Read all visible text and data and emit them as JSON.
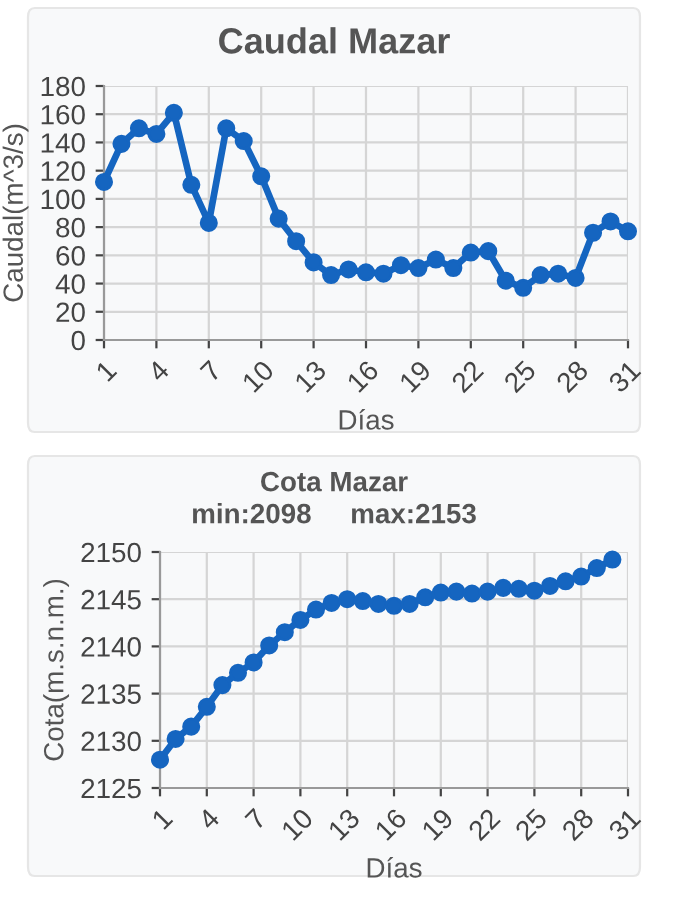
{
  "chart_data": [
    {
      "type": "line",
      "title": "Caudal Mazar",
      "xlabel": "Días",
      "ylabel": "Caudal(m^3/s)",
      "x": [
        1,
        2,
        3,
        4,
        5,
        6,
        7,
        8,
        9,
        10,
        11,
        12,
        13,
        14,
        15,
        16,
        17,
        18,
        19,
        20,
        21,
        22,
        23,
        24,
        25,
        26,
        27,
        28,
        29,
        30,
        31
      ],
      "series": [
        {
          "color": "#1565c0",
          "values": [
            112,
            139,
            150,
            146,
            161,
            110,
            83,
            150,
            141,
            116,
            86,
            70,
            55,
            46,
            50,
            48,
            47,
            53,
            51,
            57,
            51,
            62,
            63,
            42,
            37,
            46,
            47,
            44,
            76,
            84,
            77
          ]
        }
      ],
      "xlim": [
        1,
        31
      ],
      "xticks": [
        1,
        4,
        7,
        10,
        13,
        16,
        19,
        22,
        25,
        28,
        31
      ],
      "ylim": [
        0,
        180
      ],
      "yticks": [
        0,
        20,
        40,
        60,
        80,
        100,
        120,
        140,
        160,
        180
      ],
      "grid": true,
      "marker": "circle",
      "line_style": "solid"
    },
    {
      "type": "line",
      "title": "Cota Mazar",
      "subtitle": "min:2098     max:2153",
      "xlabel": "Días",
      "ylabel": "Cota(m.s.n.m.)",
      "x": [
        1,
        2,
        3,
        4,
        5,
        6,
        7,
        8,
        9,
        10,
        11,
        12,
        13,
        14,
        15,
        16,
        17,
        18,
        19,
        20,
        21,
        22,
        23,
        24,
        25,
        26,
        27,
        28,
        29,
        30
      ],
      "series": [
        {
          "color": "#1565c0",
          "values": [
            2128,
            2130.2,
            2131.5,
            2133.6,
            2135.9,
            2137.2,
            2138.3,
            2140.1,
            2141.5,
            2142.8,
            2143.9,
            2144.6,
            2145,
            2144.8,
            2144.5,
            2144.3,
            2144.5,
            2145.2,
            2145.7,
            2145.8,
            2145.6,
            2145.8,
            2146.2,
            2146.1,
            2145.9,
            2146.4,
            2146.9,
            2147.4,
            2148.3,
            2149.2
          ]
        }
      ],
      "xlim": [
        1,
        31
      ],
      "xticks": [
        1,
        4,
        7,
        10,
        13,
        16,
        19,
        22,
        25,
        28,
        31
      ],
      "ylim": [
        2125,
        2150
      ],
      "yticks": [
        2125,
        2130,
        2135,
        2140,
        2145,
        2150
      ],
      "grid": true,
      "marker": "circle",
      "line_style": "solid"
    }
  ]
}
